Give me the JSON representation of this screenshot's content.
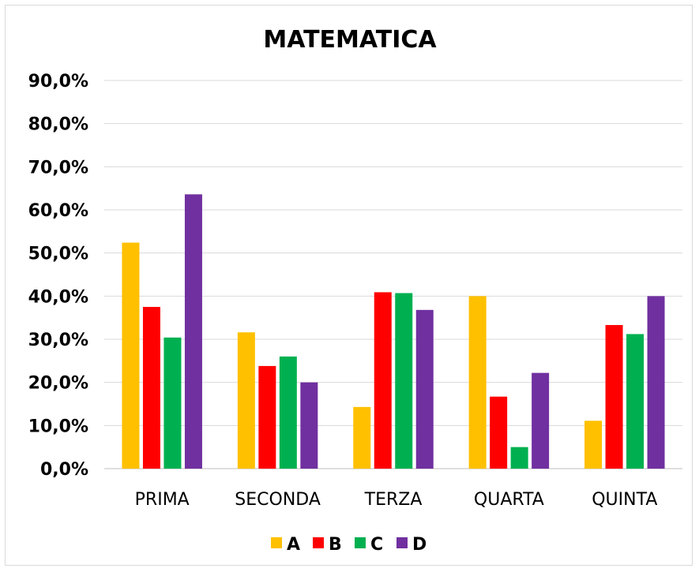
{
  "chart_data": {
    "type": "bar",
    "title": "MATEMATICA",
    "xlabel": "",
    "ylabel": "",
    "categories": [
      "PRIMA",
      "SECONDA",
      "TERZA",
      "QUARTA",
      "QUINTA"
    ],
    "series": [
      {
        "name": "A",
        "color": "#FFC000",
        "values": [
          52.4,
          31.6,
          14.3,
          40.0,
          11.1
        ]
      },
      {
        "name": "B",
        "color": "#FF0000",
        "values": [
          37.5,
          23.8,
          40.9,
          16.7,
          33.3
        ]
      },
      {
        "name": "C",
        "color": "#00B050",
        "values": [
          30.4,
          26.0,
          40.7,
          5.0,
          31.2
        ]
      },
      {
        "name": "D",
        "color": "#7030A0",
        "values": [
          63.6,
          20.0,
          36.8,
          22.2,
          40.0
        ]
      }
    ],
    "ylim": [
      0,
      90
    ],
    "yticks": [
      "0,0%",
      "10,0%",
      "20,0%",
      "30,0%",
      "40,0%",
      "50,0%",
      "60,0%",
      "70,0%",
      "80,0%",
      "90,0%"
    ],
    "grid": true,
    "legend_position": "bottom"
  }
}
